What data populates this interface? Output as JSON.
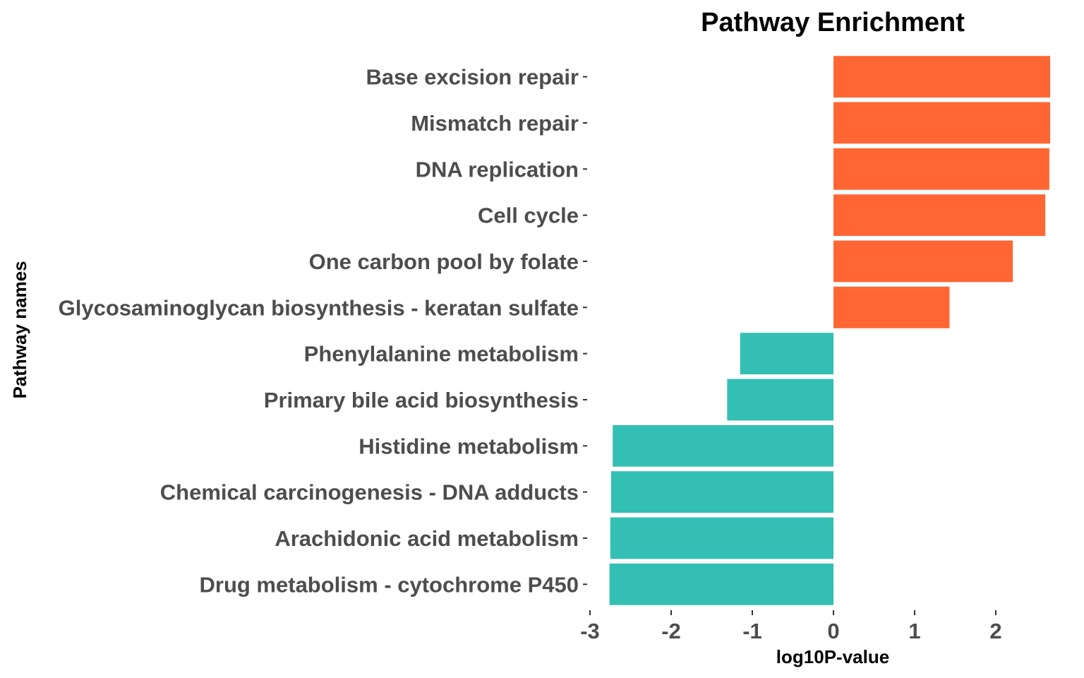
{
  "chart_data": {
    "type": "bar",
    "orientation": "horizontal",
    "title": "Pathway Enrichment",
    "xlabel": "log10P-value",
    "ylabel": "Pathway names",
    "xlim": [
      -3,
      2.7
    ],
    "xticks": [
      -3,
      -2,
      -1,
      0,
      1,
      2
    ],
    "grid": false,
    "legend": "none",
    "colors": {
      "positive": "#ff6633",
      "negative": "#33bfb3"
    },
    "categories": [
      "Base excision repair",
      "Mismatch repair",
      "DNA replication",
      "Cell cycle",
      "One carbon pool by folate",
      "Glycosaminoglycan biosynthesis - keratan sulfate",
      "Phenylalanine metabolism",
      "Primary bile acid biosynthesis",
      "Histidine metabolism",
      "Chemical carcinogenesis - DNA adducts",
      "Arachidonic acid metabolism",
      "Drug metabolism - cytochrome P450"
    ],
    "values": [
      2.67,
      2.67,
      2.66,
      2.61,
      2.21,
      1.43,
      -1.15,
      -1.31,
      -2.72,
      -2.74,
      -2.75,
      -2.76
    ]
  }
}
